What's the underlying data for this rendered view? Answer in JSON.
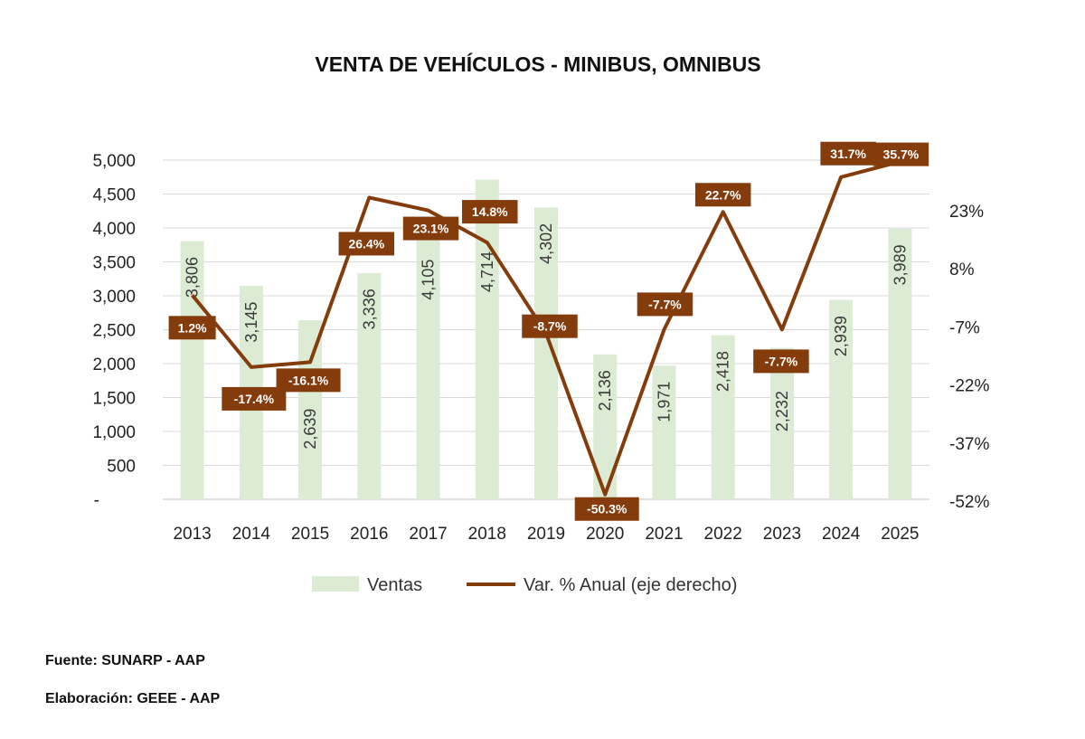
{
  "chart_data": {
    "type": "bar+line",
    "title": "VENTA DE VEHÍCULOS - MINIBUS, OMNIBUS",
    "categories": [
      "2013",
      "2014",
      "2015",
      "2016",
      "2017",
      "2018",
      "2019",
      "2020",
      "2021",
      "2022",
      "2023",
      "2024",
      "2025"
    ],
    "series": [
      {
        "name": "Ventas",
        "type": "bar",
        "axis": "left",
        "color": "#dcebd3",
        "values": [
          3806,
          3145,
          2639,
          3336,
          4105,
          4714,
          4302,
          2136,
          1971,
          2418,
          2232,
          2939,
          3989
        ],
        "labels": [
          "3,806",
          "3,145",
          "2,639",
          "3,336",
          "4,105",
          "4,714",
          "4,302",
          "2,136",
          "1,971",
          "2,418",
          "2,232",
          "2,939",
          "3,989"
        ]
      },
      {
        "name": "Var. % Anual (eje derecho)",
        "type": "line",
        "axis": "right",
        "color": "#843c0c",
        "values": [
          1.2,
          -17.4,
          -16.1,
          26.4,
          23.1,
          14.8,
          -8.7,
          -50.3,
          -7.7,
          22.7,
          -7.7,
          31.7,
          35.7
        ],
        "labels": [
          "1.2%",
          "-17.4%",
          "-16.1%",
          "26.4%",
          "23.1%",
          "14.8%",
          "-8.7%",
          "-50.3%",
          "-7.7%",
          "22.7%",
          "-7.7%",
          "31.7%",
          "35.7%"
        ]
      }
    ],
    "left_axis": {
      "ylim": [
        0,
        5000
      ],
      "ticks": [
        "-",
        "500",
        "1,000",
        "1,500",
        "2,000",
        "2,500",
        "3,000",
        "3,500",
        "4,000",
        "4,500",
        "5,000"
      ]
    },
    "right_axis": {
      "ylim": [
        -52,
        36
      ],
      "ticks": [
        "-52%",
        "-37%",
        "-22%",
        "-7%",
        "8%",
        "23%"
      ],
      "tick_values": [
        -52,
        -37,
        -22,
        -7,
        8,
        23
      ]
    },
    "grid": true,
    "legend": "bottom"
  },
  "footer": {
    "source": "Fuente: SUNARP - AAP",
    "elaboration": "Elaboración: GEEE - AAP"
  }
}
